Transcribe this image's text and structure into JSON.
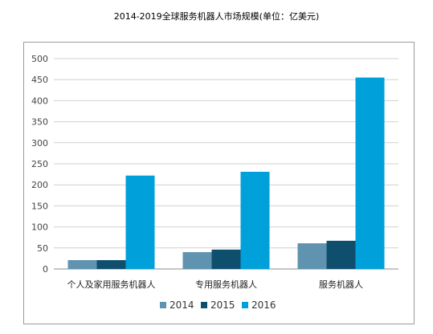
{
  "chart_data": {
    "type": "bar",
    "title": "2014-2019全球服务机器人市场规模(单位：亿美元)",
    "categories": [
      "个人及家用服务机器人",
      "专用服务机器人",
      "服务机器人"
    ],
    "series": [
      {
        "name": "2014",
        "color": "#5f93b0",
        "values": [
          21,
          40,
          61
        ]
      },
      {
        "name": "2015",
        "color": "#0f4f6e",
        "values": [
          21,
          46,
          67
        ]
      },
      {
        "name": "2016",
        "color": "#00a0db",
        "values": [
          222,
          231,
          455
        ]
      }
    ],
    "ylim": [
      0,
      500
    ],
    "yticks": [
      "0",
      "50",
      "100",
      "150",
      "200",
      "250",
      "300",
      "350",
      "400",
      "450",
      "500"
    ],
    "grid": true,
    "legend": "bottom"
  }
}
